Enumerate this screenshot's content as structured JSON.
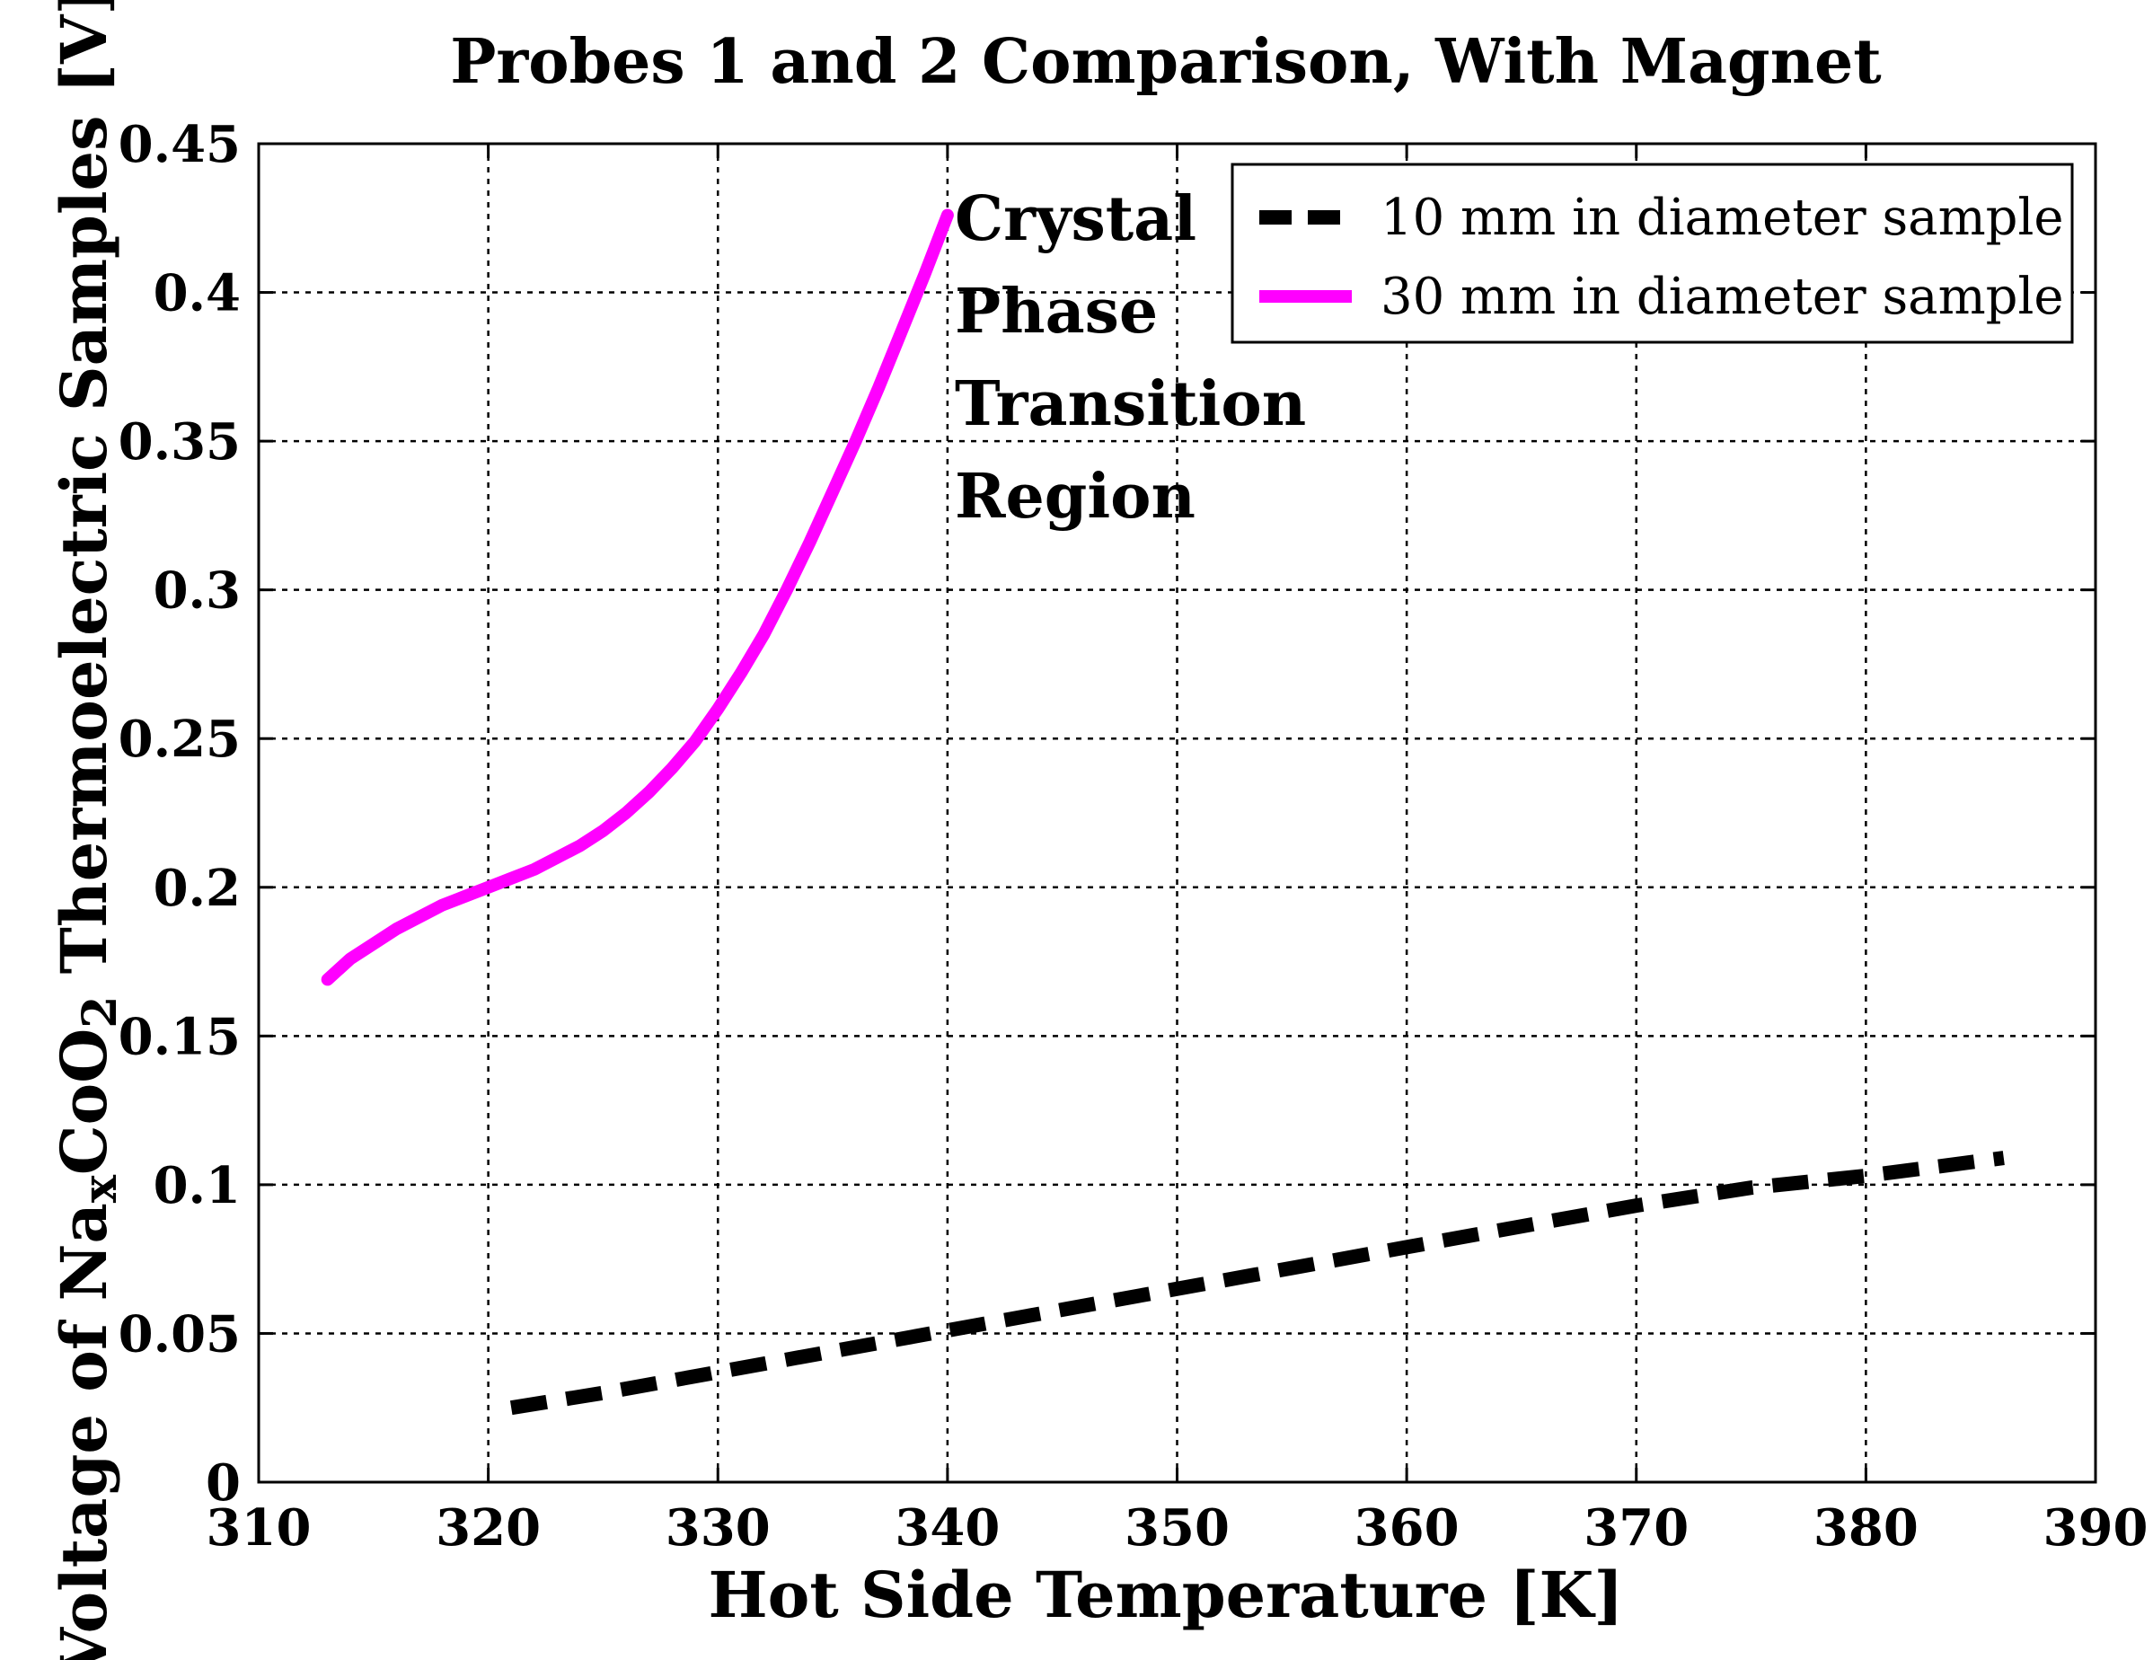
{
  "chart_data": {
    "type": "line",
    "title": "Probes 1 and 2 Comparison, With Magnet",
    "xlabel": "Hot Side Temperature [K]",
    "ylabel": {
      "prefix": "Voltage of Na",
      "sub1": "x",
      "mid": "CoO",
      "sub2": "2",
      "suffix": " Thermoelectric Samples [V]"
    },
    "xlim": [
      310,
      390
    ],
    "ylim": [
      0,
      0.45
    ],
    "xticks": [
      310,
      320,
      330,
      340,
      350,
      360,
      370,
      380,
      390
    ],
    "yticks": [
      0,
      0.05,
      0.1,
      0.15,
      0.2,
      0.25,
      0.3,
      0.35,
      0.4,
      0.45
    ],
    "xtick_labels": [
      "310",
      "320",
      "330",
      "340",
      "350",
      "360",
      "370",
      "380",
      "390"
    ],
    "ytick_labels": [
      "0",
      "0.05",
      "0.1",
      "0.15",
      "0.2",
      "0.25",
      "0.3",
      "0.35",
      "0.4",
      "0.45"
    ],
    "grid": true,
    "legend_position": "top-right",
    "series": [
      {
        "name": "10 mm in diameter sample",
        "color": "#000000",
        "style": "dashed",
        "x": [
          321,
          325,
          330,
          335,
          340,
          345,
          350,
          355,
          360,
          365,
          370,
          375,
          380,
          386
        ],
        "y": [
          0.025,
          0.03,
          0.037,
          0.044,
          0.051,
          0.058,
          0.065,
          0.072,
          0.079,
          0.086,
          0.093,
          0.099,
          0.103,
          0.109
        ]
      },
      {
        "name": "30 mm in diameter sample",
        "color": "#ff00ff",
        "style": "solid",
        "x": [
          313,
          314,
          315,
          316,
          317,
          318,
          319,
          320,
          321,
          322,
          323,
          324,
          325,
          326,
          327,
          328,
          329,
          330,
          331,
          332,
          333,
          334,
          335,
          336,
          337,
          338,
          339,
          340
        ],
        "y": [
          0.169,
          0.176,
          0.181,
          0.186,
          0.19,
          0.194,
          0.197,
          0.2,
          0.203,
          0.206,
          0.21,
          0.214,
          0.219,
          0.225,
          0.232,
          0.24,
          0.249,
          0.26,
          0.272,
          0.285,
          0.3,
          0.316,
          0.333,
          0.35,
          0.368,
          0.387,
          0.406,
          0.426
        ]
      }
    ],
    "annotation": [
      "Crystal",
      "Phase",
      "Transition",
      "Region"
    ]
  }
}
